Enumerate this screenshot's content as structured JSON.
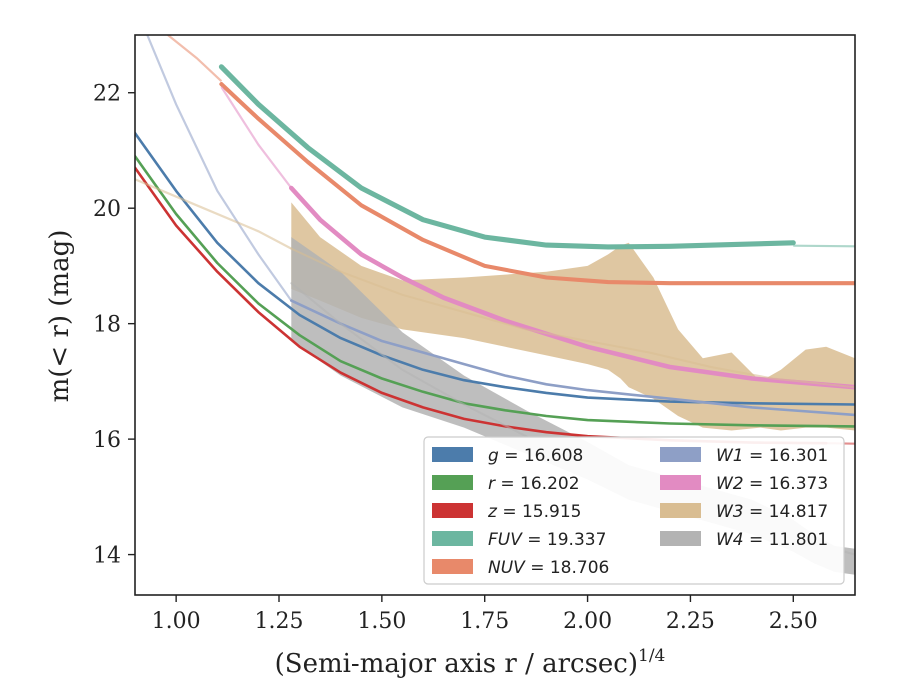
{
  "chart_data": {
    "type": "line",
    "title": "",
    "xlabel": "(Semi-major axis r / arcsec)",
    "xlabel_sup": "1/4",
    "ylabel": "m(< r) (mag)",
    "xlim": [
      0.9,
      2.65
    ],
    "ylim": [
      23.0,
      13.3
    ],
    "y_inverted": true,
    "grid": false,
    "legend_placement": "lower-right",
    "xticks": [
      1.0,
      1.25,
      1.5,
      1.75,
      2.0,
      2.25,
      2.5
    ],
    "xtick_labels": [
      "1.00",
      "1.25",
      "1.50",
      "1.75",
      "2.00",
      "2.25",
      "2.50"
    ],
    "yticks": [
      14,
      16,
      18,
      20,
      22
    ],
    "ytick_labels": [
      "14",
      "16",
      "18",
      "20",
      "22"
    ],
    "series": [
      {
        "name": "g = 16.608",
        "band": "g",
        "total": "16.608",
        "color": "#4c7cab",
        "x": [
          0.9,
          1.0,
          1.1,
          1.2,
          1.3,
          1.4,
          1.5,
          1.6,
          1.7,
          1.8,
          1.9,
          2.0,
          2.2,
          2.4,
          2.65
        ],
        "y": [
          21.3,
          20.3,
          19.4,
          18.7,
          18.15,
          17.75,
          17.45,
          17.2,
          17.02,
          16.9,
          16.8,
          16.72,
          16.65,
          16.62,
          16.6
        ],
        "width": 1.0,
        "faint_x": [],
        "faint_y": []
      },
      {
        "name": "r = 16.202",
        "band": "r",
        "total": "16.202",
        "color": "#55a055",
        "x": [
          0.9,
          1.0,
          1.1,
          1.2,
          1.3,
          1.4,
          1.5,
          1.6,
          1.7,
          1.8,
          1.9,
          2.0,
          2.2,
          2.4,
          2.65
        ],
        "y": [
          20.9,
          19.9,
          19.05,
          18.35,
          17.8,
          17.35,
          17.05,
          16.82,
          16.62,
          16.5,
          16.4,
          16.33,
          16.27,
          16.24,
          16.22
        ],
        "width": 1.0,
        "faint_x": [],
        "faint_y": []
      },
      {
        "name": "z = 15.915",
        "band": "z",
        "total": "15.915",
        "color": "#cc3333",
        "x": [
          0.9,
          1.0,
          1.1,
          1.2,
          1.3,
          1.4,
          1.5,
          1.6,
          1.7,
          1.8,
          1.9,
          2.0,
          2.2,
          2.4,
          2.58
        ],
        "y": [
          20.7,
          19.7,
          18.9,
          18.2,
          17.6,
          17.15,
          16.8,
          16.55,
          16.35,
          16.22,
          16.12,
          16.05,
          15.98,
          15.94,
          15.93
        ],
        "width": 1.0,
        "faint_x": [
          2.58,
          2.65
        ],
        "faint_y": [
          15.93,
          15.92
        ]
      },
      {
        "name": "FUV = 19.337",
        "band": "FUV",
        "total": "19.337",
        "color": "#6cb6a0",
        "x": [
          1.11,
          1.2,
          1.32,
          1.45,
          1.6,
          1.75,
          1.9,
          2.05,
          2.2,
          2.35,
          2.5
        ],
        "y": [
          22.45,
          21.8,
          21.05,
          20.35,
          19.8,
          19.5,
          19.36,
          19.33,
          19.34,
          19.37,
          19.4
        ],
        "width": 3.5,
        "faint_x": [
          2.5,
          2.65
        ],
        "faint_y": [
          19.35,
          19.34
        ]
      },
      {
        "name": "NUV = 18.706",
        "band": "NUV",
        "total": "18.706",
        "color": "#e8896a",
        "x": [
          1.11,
          1.2,
          1.32,
          1.45,
          1.6,
          1.75,
          1.9,
          2.05,
          2.2,
          2.4,
          2.65
        ],
        "y": [
          22.15,
          21.55,
          20.8,
          20.05,
          19.45,
          19.0,
          18.8,
          18.72,
          18.7,
          18.7,
          18.7
        ],
        "width": 2.5,
        "faint_x": [
          0.98,
          1.05,
          1.11
        ],
        "faint_y": [
          23.0,
          22.6,
          22.2
        ]
      },
      {
        "name": "W1 = 16.301",
        "band": "W1",
        "total": "16.301",
        "color": "#8e9fc6",
        "x": [
          1.28,
          1.4,
          1.5,
          1.6,
          1.7,
          1.8,
          1.9,
          2.0,
          2.2,
          2.4,
          2.65
        ],
        "y": [
          18.4,
          18.0,
          17.7,
          17.5,
          17.3,
          17.1,
          16.95,
          16.85,
          16.7,
          16.55,
          16.42
        ],
        "width": 1.0,
        "faint_x": [
          0.93,
          1.0,
          1.1,
          1.2,
          1.28
        ],
        "faint_y": [
          23.0,
          21.8,
          20.3,
          19.2,
          18.4
        ]
      },
      {
        "name": "W2 = 16.373",
        "band": "W2",
        "total": "16.373",
        "color": "#e28bc2",
        "x": [
          1.28,
          1.35,
          1.45,
          1.55,
          1.65,
          1.8,
          2.0,
          2.2,
          2.4,
          2.65
        ],
        "y": [
          20.35,
          19.8,
          19.2,
          18.8,
          18.45,
          18.05,
          17.6,
          17.25,
          17.05,
          16.9
        ],
        "width": 3.0,
        "faint_x": [
          1.11,
          1.2,
          1.28
        ],
        "faint_y": [
          22.1,
          21.1,
          20.35
        ]
      },
      {
        "name": "W3 = 14.817",
        "band": "W3",
        "total": "14.817",
        "color": "#d9bd92",
        "x": [
          1.28,
          1.4,
          1.55,
          1.7,
          1.85,
          2.0,
          2.15,
          2.3,
          2.45,
          2.65
        ],
        "y": [
          19.3,
          18.9,
          18.5,
          18.2,
          17.9,
          17.7,
          17.5,
          17.25,
          17.05,
          16.9
        ],
        "width": 1.0,
        "band_lower": [
          20.1,
          19.5,
          19.0,
          18.75,
          18.8,
          18.85,
          18.9,
          19.0,
          19.2,
          19.35,
          19.4,
          18.8,
          17.9,
          17.4,
          17.5,
          17.0,
          17.2,
          17.55,
          17.6,
          17.4
        ],
        "band_upper": [
          18.6,
          18.4,
          18.1,
          17.9,
          17.75,
          17.6,
          17.45,
          17.3,
          17.2,
          17.05,
          16.9,
          16.7,
          16.4,
          16.2,
          16.15,
          16.2,
          16.15,
          16.2,
          16.2,
          16.15
        ],
        "band_x": [
          1.28,
          1.35,
          1.45,
          1.55,
          1.7,
          1.8,
          1.9,
          2.0,
          2.05,
          2.08,
          2.1,
          2.16,
          2.22,
          2.28,
          2.35,
          2.42,
          2.47,
          2.53,
          2.58,
          2.65
        ],
        "faint_x": [
          0.9,
          1.05,
          1.2,
          1.28
        ],
        "faint_y": [
          20.5,
          20.05,
          19.6,
          19.3
        ]
      },
      {
        "name": "W4 = 11.801",
        "band": "W4",
        "total": "11.801",
        "color": "#b3b3b3",
        "x": [
          1.28,
          1.4,
          1.55,
          1.7,
          1.85,
          2.0,
          2.15,
          2.3,
          2.45,
          2.65
        ],
        "y": [
          18.7,
          18.0,
          17.2,
          16.6,
          16.05,
          15.5,
          15.05,
          14.75,
          14.4,
          14.0
        ],
        "width": 1.0,
        "band_x": [
          1.28,
          1.4,
          1.55,
          1.7,
          1.85,
          2.0,
          2.1,
          2.2,
          2.3,
          2.4,
          2.5,
          2.55,
          2.6,
          2.65
        ],
        "band_upper": [
          17.7,
          17.1,
          16.55,
          16.2,
          15.75,
          15.3,
          14.95,
          14.75,
          14.55,
          14.35,
          14.05,
          13.85,
          13.7,
          13.65
        ],
        "band_lower": [
          19.5,
          18.9,
          17.85,
          17.1,
          16.5,
          15.95,
          15.55,
          15.35,
          15.15,
          14.95,
          14.6,
          14.35,
          14.15,
          14.1
        ],
        "faint_x": [],
        "faint_y": []
      }
    ]
  }
}
